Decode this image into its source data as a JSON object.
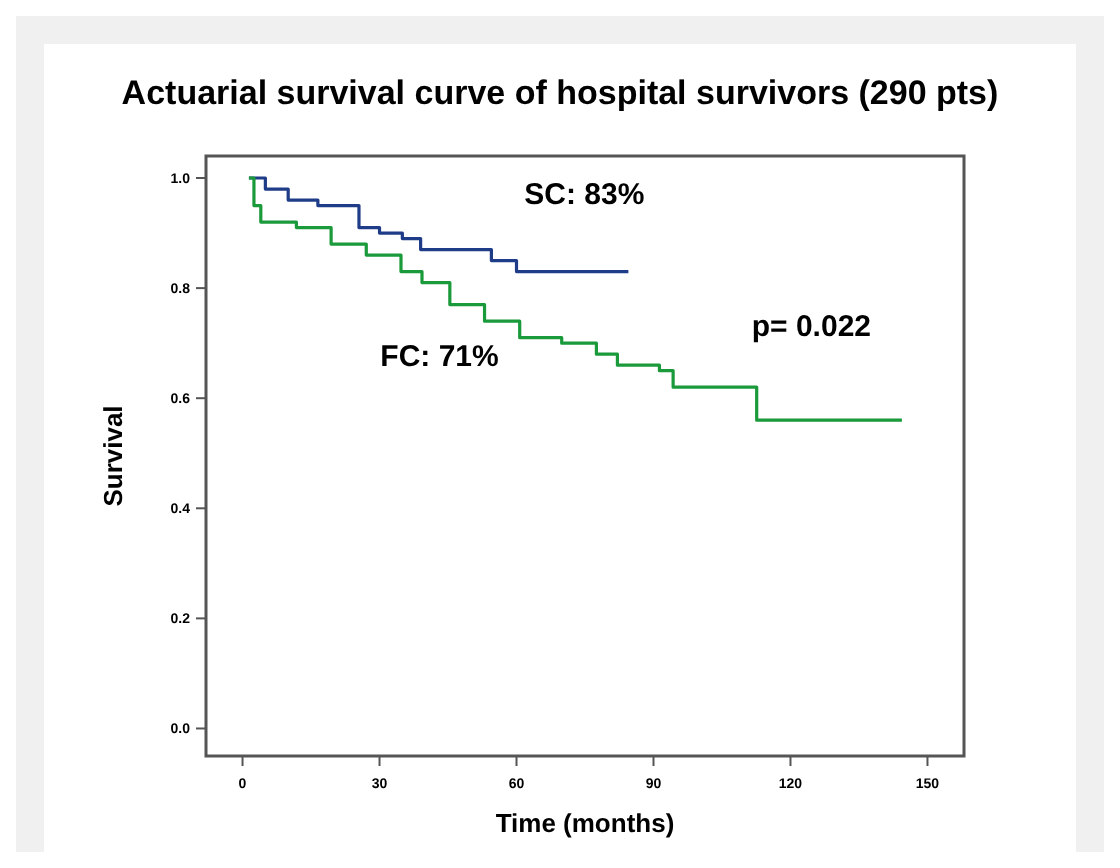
{
  "chart_data": {
    "type": "step",
    "title": "Actuarial survival curve of hospital survivors (290 pts)",
    "xlabel": "Time (months)",
    "ylabel": "Survival",
    "xlim": [
      -8,
      158
    ],
    "ylim": [
      -0.05,
      1.04
    ],
    "xticks": [
      0,
      30,
      60,
      90,
      120,
      150
    ],
    "yticks": [
      {
        "value": 0,
        "label": "0.0"
      },
      {
        "value": 0.2,
        "label": "0.2"
      },
      {
        "value": 0.4,
        "label": "0.4"
      },
      {
        "value": 0.6,
        "label": "0.6"
      },
      {
        "value": 0.8,
        "label": "0.8"
      },
      {
        "value": 1,
        "label": "1.0"
      }
    ],
    "grid": false,
    "marker": "none",
    "line_style": "solid",
    "series": [
      {
        "color": "#1f3c88",
        "x": [
          1.4,
          5,
          10,
          16.5,
          25.5,
          30,
          35,
          39,
          54.5,
          60,
          84.5
        ],
        "values": [
          1.0,
          0.98,
          0.96,
          0.95,
          0.91,
          0.9,
          0.89,
          0.87,
          0.85,
          0.83,
          0.83
        ]
      },
      {
        "color": "#1a9a3a",
        "x": [
          1.4,
          2.5,
          4,
          11.8,
          19.4,
          27.1,
          34.7,
          39.3,
          45.4,
          53,
          60.7,
          69.9,
          77.5,
          82.1,
          91.3,
          94.3,
          112.6,
          144.4
        ],
        "values": [
          1.0,
          0.95,
          0.92,
          0.91,
          0.88,
          0.86,
          0.83,
          0.81,
          0.77,
          0.74,
          0.71,
          0.7,
          0.68,
          0.66,
          0.65,
          0.62,
          0.56,
          0.56
        ]
      }
    ],
    "annotations": [
      "SC: 83%",
      "FC: 71%",
      "p= 0.022"
    ]
  }
}
